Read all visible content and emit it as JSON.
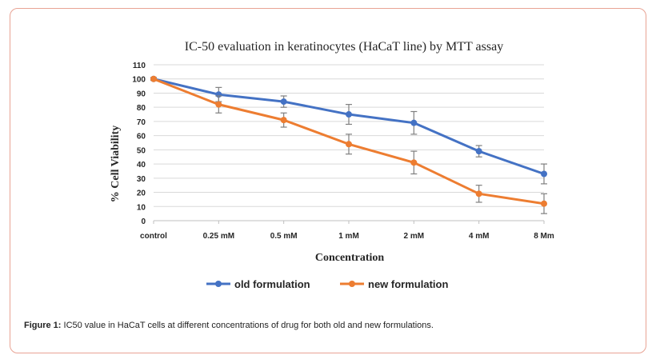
{
  "colors": {
    "old": "#4472c4",
    "new": "#ed7d31",
    "frame": "#e8a394",
    "grid": "#d9d9d9",
    "errorbar": "#7f7f7f"
  },
  "caption": {
    "label": "Figure 1:",
    "text": " IC50 value in HaCaT cells at different concentrations of drug for both old and new formulations."
  },
  "chart_data": {
    "type": "line",
    "title": "IC-50 evaluation in keratinocytes (HaCaT line) by MTT assay",
    "xlabel": "Concentration",
    "ylabel": "% Cell Viability",
    "categories": [
      "control",
      "0.25 mM",
      "0.5 mM",
      "1 mM",
      "2 mM",
      "4 mM",
      "8 Mm"
    ],
    "ylim": [
      0,
      110
    ],
    "yticks": [
      0,
      10,
      20,
      30,
      40,
      50,
      60,
      70,
      80,
      90,
      100,
      110
    ],
    "grid": true,
    "legend": "bottom",
    "series": [
      {
        "name": "old formulation",
        "values": [
          100,
          89,
          84,
          75,
          69,
          49,
          33
        ],
        "errors": [
          1,
          5,
          4,
          7,
          8,
          4,
          7
        ]
      },
      {
        "name": "new formulation",
        "values": [
          100,
          82,
          71,
          54,
          41,
          19,
          12
        ],
        "errors": [
          1,
          6,
          5,
          7,
          8,
          6,
          7
        ]
      }
    ]
  }
}
